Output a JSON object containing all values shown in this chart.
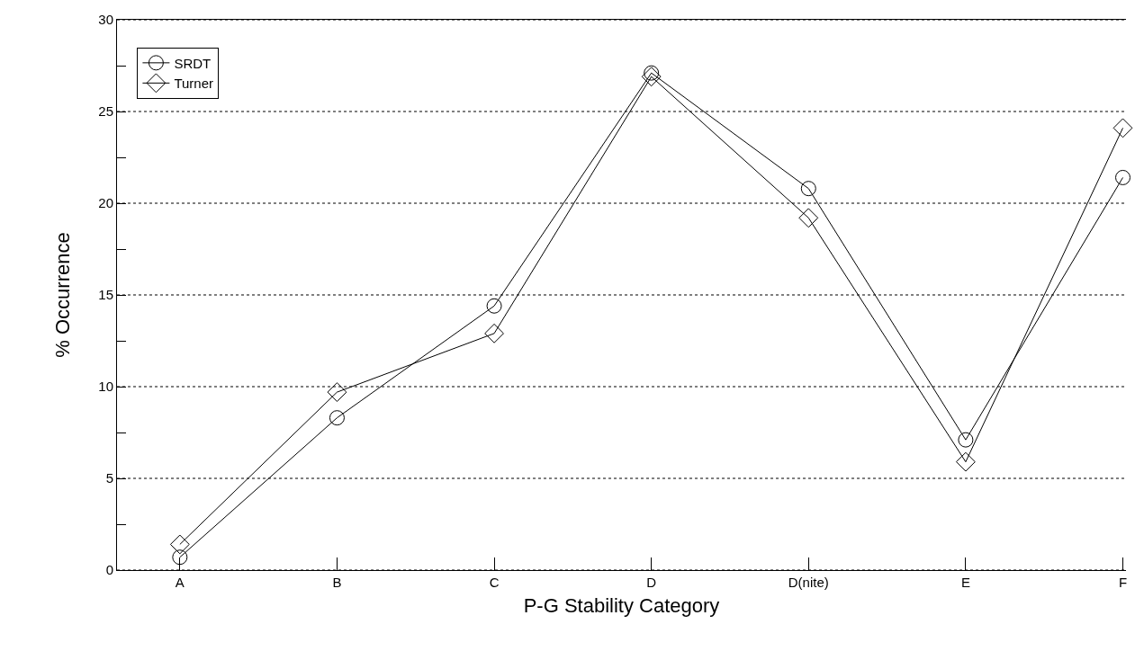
{
  "chart_data": {
    "type": "line",
    "xlabel": "P-G Stability Category",
    "ylabel": "% Occurrence",
    "categories": [
      "A",
      "B",
      "C",
      "D",
      "D(nite)",
      "E",
      "F"
    ],
    "series": [
      {
        "name": "SRDT",
        "color": "#000000",
        "marker": "circle",
        "values": [
          0.7,
          8.3,
          14.4,
          27.1,
          20.8,
          7.1,
          21.4
        ]
      },
      {
        "name": "Turner",
        "color": "#000000",
        "marker": "diamond",
        "values": [
          1.4,
          9.7,
          12.9,
          26.9,
          19.2,
          5.9,
          24.1
        ]
      }
    ],
    "ylim": [
      0,
      30
    ],
    "yticks": [
      0,
      {
        "value": 2.5,
        "label": null
      },
      5,
      {
        "value": 7.5,
        "label": null
      },
      10,
      {
        "value": 12.5,
        "label": null
      },
      15,
      {
        "value": 17.5,
        "label": null
      },
      20,
      {
        "value": 22.5,
        "label": null
      },
      25,
      {
        "value": 27.5,
        "label": null
      },
      30
    ],
    "grid": "y",
    "legend": "top left",
    "line_style": "solid"
  }
}
